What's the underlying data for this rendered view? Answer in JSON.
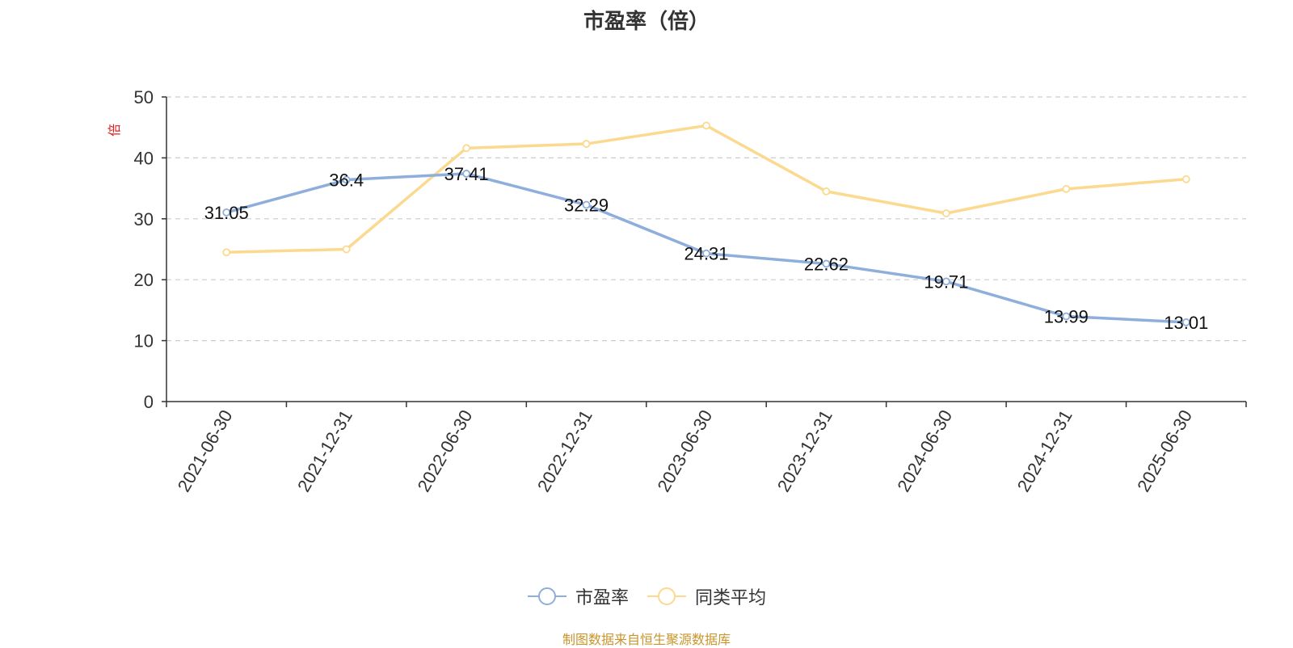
{
  "chart_data": {
    "type": "line",
    "title": "市盈率（倍）",
    "ylabel": "倍",
    "ylim": [
      0,
      50
    ],
    "yticks": [
      0,
      10,
      20,
      30,
      40,
      50
    ],
    "grid": true,
    "legend_position": "bottom",
    "categories": [
      "2021-06-30",
      "2021-12-31",
      "2022-06-30",
      "2022-12-31",
      "2023-06-30",
      "2023-12-31",
      "2024-06-30",
      "2024-12-31",
      "2025-06-30"
    ],
    "series": [
      {
        "name": "市盈率",
        "color": "#8eaedb",
        "values": [
          31.05,
          36.4,
          37.41,
          32.29,
          24.31,
          22.62,
          19.71,
          13.99,
          13.01
        ],
        "data_labels": [
          "31.05",
          "36.4",
          "37.41",
          "32.29",
          "24.31",
          "22.62",
          "19.71",
          "13.99",
          "13.01"
        ]
      },
      {
        "name": "同类平均",
        "color": "#fbd98e",
        "values": [
          24.5,
          25.0,
          41.6,
          42.3,
          45.3,
          34.5,
          30.9,
          34.9,
          36.5
        ]
      }
    ]
  },
  "source_note": "制图数据来自恒生聚源数据库"
}
